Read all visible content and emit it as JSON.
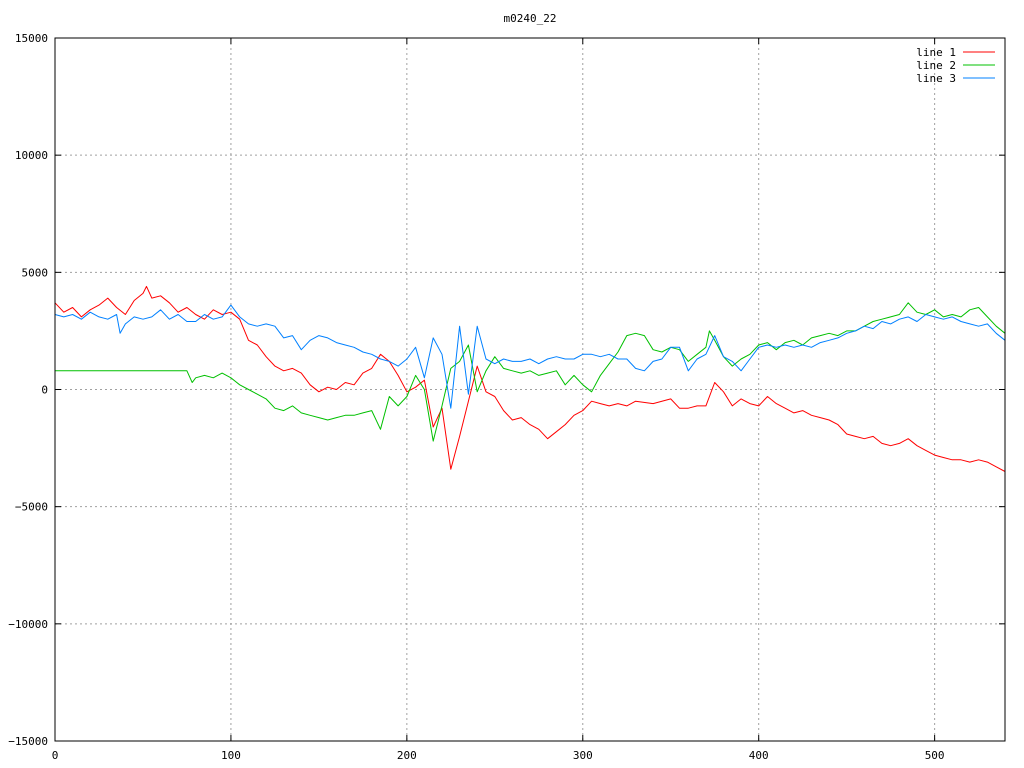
{
  "chart_data": {
    "type": "line",
    "title": "m0240_22",
    "xlabel": "",
    "ylabel": "",
    "xlim": [
      0,
      540
    ],
    "ylim": [
      -15000,
      15000
    ],
    "x_ticks": [
      0,
      100,
      200,
      300,
      400,
      500
    ],
    "y_ticks": [
      -15000,
      -10000,
      -5000,
      0,
      5000,
      10000,
      15000
    ],
    "grid": true,
    "legend_position": "top-right",
    "series": [
      {
        "name": "line 1",
        "color": "#ff0000",
        "points": [
          [
            0,
            3700
          ],
          [
            5,
            3300
          ],
          [
            10,
            3500
          ],
          [
            15,
            3100
          ],
          [
            20,
            3400
          ],
          [
            25,
            3600
          ],
          [
            30,
            3900
          ],
          [
            35,
            3500
          ],
          [
            40,
            3200
          ],
          [
            45,
            3800
          ],
          [
            50,
            4100
          ],
          [
            52,
            4400
          ],
          [
            55,
            3900
          ],
          [
            60,
            4000
          ],
          [
            65,
            3700
          ],
          [
            70,
            3300
          ],
          [
            75,
            3500
          ],
          [
            80,
            3200
          ],
          [
            85,
            3000
          ],
          [
            90,
            3400
          ],
          [
            95,
            3200
          ],
          [
            100,
            3300
          ],
          [
            105,
            3000
          ],
          [
            110,
            2100
          ],
          [
            115,
            1900
          ],
          [
            120,
            1400
          ],
          [
            125,
            1000
          ],
          [
            130,
            800
          ],
          [
            135,
            900
          ],
          [
            140,
            700
          ],
          [
            145,
            200
          ],
          [
            150,
            -100
          ],
          [
            155,
            100
          ],
          [
            160,
            0
          ],
          [
            165,
            300
          ],
          [
            170,
            200
          ],
          [
            175,
            700
          ],
          [
            180,
            900
          ],
          [
            185,
            1500
          ],
          [
            190,
            1200
          ],
          [
            195,
            600
          ],
          [
            200,
            -100
          ],
          [
            205,
            100
          ],
          [
            210,
            400
          ],
          [
            215,
            -1600
          ],
          [
            220,
            -800
          ],
          [
            225,
            -3400
          ],
          [
            230,
            -2000
          ],
          [
            235,
            -500
          ],
          [
            240,
            1000
          ],
          [
            245,
            -100
          ],
          [
            250,
            -300
          ],
          [
            255,
            -900
          ],
          [
            260,
            -1300
          ],
          [
            265,
            -1200
          ],
          [
            270,
            -1500
          ],
          [
            275,
            -1700
          ],
          [
            280,
            -2100
          ],
          [
            285,
            -1800
          ],
          [
            290,
            -1500
          ],
          [
            295,
            -1100
          ],
          [
            300,
            -900
          ],
          [
            305,
            -500
          ],
          [
            310,
            -600
          ],
          [
            315,
            -700
          ],
          [
            320,
            -600
          ],
          [
            325,
            -700
          ],
          [
            330,
            -500
          ],
          [
            340,
            -600
          ],
          [
            350,
            -400
          ],
          [
            355,
            -800
          ],
          [
            360,
            -800
          ],
          [
            365,
            -700
          ],
          [
            370,
            -700
          ],
          [
            375,
            300
          ],
          [
            380,
            -100
          ],
          [
            385,
            -700
          ],
          [
            390,
            -400
          ],
          [
            395,
            -600
          ],
          [
            400,
            -700
          ],
          [
            405,
            -300
          ],
          [
            410,
            -600
          ],
          [
            415,
            -800
          ],
          [
            420,
            -1000
          ],
          [
            425,
            -900
          ],
          [
            430,
            -1100
          ],
          [
            435,
            -1200
          ],
          [
            440,
            -1300
          ],
          [
            445,
            -1500
          ],
          [
            450,
            -1900
          ],
          [
            455,
            -2000
          ],
          [
            460,
            -2100
          ],
          [
            465,
            -2000
          ],
          [
            470,
            -2300
          ],
          [
            475,
            -2400
          ],
          [
            480,
            -2300
          ],
          [
            485,
            -2100
          ],
          [
            490,
            -2400
          ],
          [
            495,
            -2600
          ],
          [
            500,
            -2800
          ],
          [
            505,
            -2900
          ],
          [
            510,
            -3000
          ],
          [
            515,
            -3000
          ],
          [
            520,
            -3100
          ],
          [
            525,
            -3000
          ],
          [
            530,
            -3100
          ],
          [
            535,
            -3300
          ],
          [
            540,
            -3500
          ]
        ]
      },
      {
        "name": "line 2",
        "color": "#00c000",
        "points": [
          [
            0,
            800
          ],
          [
            10,
            800
          ],
          [
            20,
            800
          ],
          [
            30,
            800
          ],
          [
            40,
            800
          ],
          [
            50,
            800
          ],
          [
            60,
            800
          ],
          [
            70,
            800
          ],
          [
            75,
            800
          ],
          [
            78,
            300
          ],
          [
            80,
            500
          ],
          [
            85,
            600
          ],
          [
            90,
            500
          ],
          [
            95,
            700
          ],
          [
            100,
            500
          ],
          [
            105,
            200
          ],
          [
            110,
            0
          ],
          [
            115,
            -200
          ],
          [
            120,
            -400
          ],
          [
            125,
            -800
          ],
          [
            130,
            -900
          ],
          [
            135,
            -700
          ],
          [
            140,
            -1000
          ],
          [
            145,
            -1100
          ],
          [
            150,
            -1200
          ],
          [
            155,
            -1300
          ],
          [
            160,
            -1200
          ],
          [
            165,
            -1100
          ],
          [
            170,
            -1100
          ],
          [
            175,
            -1000
          ],
          [
            180,
            -900
          ],
          [
            185,
            -1700
          ],
          [
            190,
            -300
          ],
          [
            195,
            -700
          ],
          [
            200,
            -300
          ],
          [
            205,
            600
          ],
          [
            210,
            0
          ],
          [
            215,
            -2200
          ],
          [
            220,
            -700
          ],
          [
            225,
            900
          ],
          [
            230,
            1200
          ],
          [
            235,
            1900
          ],
          [
            240,
            -100
          ],
          [
            245,
            800
          ],
          [
            250,
            1400
          ],
          [
            255,
            900
          ],
          [
            260,
            800
          ],
          [
            265,
            700
          ],
          [
            270,
            800
          ],
          [
            275,
            600
          ],
          [
            280,
            700
          ],
          [
            285,
            800
          ],
          [
            290,
            200
          ],
          [
            295,
            600
          ],
          [
            300,
            200
          ],
          [
            305,
            -100
          ],
          [
            310,
            600
          ],
          [
            315,
            1100
          ],
          [
            320,
            1600
          ],
          [
            325,
            2300
          ],
          [
            330,
            2400
          ],
          [
            335,
            2300
          ],
          [
            340,
            1700
          ],
          [
            345,
            1600
          ],
          [
            350,
            1800
          ],
          [
            355,
            1700
          ],
          [
            360,
            1200
          ],
          [
            365,
            1500
          ],
          [
            370,
            1800
          ],
          [
            372,
            2500
          ],
          [
            375,
            2100
          ],
          [
            380,
            1400
          ],
          [
            385,
            1000
          ],
          [
            390,
            1300
          ],
          [
            395,
            1500
          ],
          [
            400,
            1900
          ],
          [
            405,
            2000
          ],
          [
            410,
            1700
          ],
          [
            415,
            2000
          ],
          [
            420,
            2100
          ],
          [
            425,
            1900
          ],
          [
            430,
            2200
          ],
          [
            435,
            2300
          ],
          [
            440,
            2400
          ],
          [
            445,
            2300
          ],
          [
            450,
            2500
          ],
          [
            455,
            2500
          ],
          [
            460,
            2700
          ],
          [
            465,
            2900
          ],
          [
            470,
            3000
          ],
          [
            475,
            3100
          ],
          [
            480,
            3200
          ],
          [
            485,
            3700
          ],
          [
            490,
            3300
          ],
          [
            495,
            3200
          ],
          [
            500,
            3400
          ],
          [
            505,
            3100
          ],
          [
            510,
            3200
          ],
          [
            515,
            3100
          ],
          [
            520,
            3400
          ],
          [
            525,
            3500
          ],
          [
            530,
            3100
          ],
          [
            535,
            2700
          ],
          [
            540,
            2400
          ]
        ]
      },
      {
        "name": "line 3",
        "color": "#0080ff",
        "points": [
          [
            0,
            3200
          ],
          [
            5,
            3100
          ],
          [
            10,
            3200
          ],
          [
            15,
            3000
          ],
          [
            20,
            3300
          ],
          [
            25,
            3100
          ],
          [
            30,
            3000
          ],
          [
            35,
            3200
          ],
          [
            37,
            2400
          ],
          [
            40,
            2800
          ],
          [
            45,
            3100
          ],
          [
            50,
            3000
          ],
          [
            55,
            3100
          ],
          [
            60,
            3400
          ],
          [
            65,
            3000
          ],
          [
            70,
            3200
          ],
          [
            75,
            2900
          ],
          [
            80,
            2900
          ],
          [
            85,
            3200
          ],
          [
            90,
            3000
          ],
          [
            95,
            3100
          ],
          [
            100,
            3600
          ],
          [
            105,
            3100
          ],
          [
            110,
            2800
          ],
          [
            115,
            2700
          ],
          [
            120,
            2800
          ],
          [
            125,
            2700
          ],
          [
            130,
            2200
          ],
          [
            135,
            2300
          ],
          [
            140,
            1700
          ],
          [
            145,
            2100
          ],
          [
            150,
            2300
          ],
          [
            155,
            2200
          ],
          [
            160,
            2000
          ],
          [
            165,
            1900
          ],
          [
            170,
            1800
          ],
          [
            175,
            1600
          ],
          [
            180,
            1500
          ],
          [
            185,
            1300
          ],
          [
            190,
            1200
          ],
          [
            195,
            1000
          ],
          [
            200,
            1300
          ],
          [
            205,
            1800
          ],
          [
            210,
            500
          ],
          [
            215,
            2200
          ],
          [
            220,
            1500
          ],
          [
            225,
            -800
          ],
          [
            230,
            2700
          ],
          [
            235,
            -200
          ],
          [
            240,
            2700
          ],
          [
            245,
            1300
          ],
          [
            250,
            1100
          ],
          [
            255,
            1300
          ],
          [
            260,
            1200
          ],
          [
            265,
            1200
          ],
          [
            270,
            1300
          ],
          [
            275,
            1100
          ],
          [
            280,
            1300
          ],
          [
            285,
            1400
          ],
          [
            290,
            1300
          ],
          [
            295,
            1300
          ],
          [
            300,
            1500
          ],
          [
            305,
            1500
          ],
          [
            310,
            1400
          ],
          [
            315,
            1500
          ],
          [
            320,
            1300
          ],
          [
            325,
            1300
          ],
          [
            330,
            900
          ],
          [
            335,
            800
          ],
          [
            340,
            1200
          ],
          [
            345,
            1300
          ],
          [
            350,
            1800
          ],
          [
            355,
            1800
          ],
          [
            360,
            800
          ],
          [
            365,
            1300
          ],
          [
            370,
            1500
          ],
          [
            375,
            2300
          ],
          [
            380,
            1400
          ],
          [
            385,
            1200
          ],
          [
            390,
            800
          ],
          [
            395,
            1300
          ],
          [
            400,
            1800
          ],
          [
            405,
            1900
          ],
          [
            410,
            1800
          ],
          [
            415,
            1900
          ],
          [
            420,
            1800
          ],
          [
            425,
            1900
          ],
          [
            430,
            1800
          ],
          [
            435,
            2000
          ],
          [
            440,
            2100
          ],
          [
            445,
            2200
          ],
          [
            450,
            2400
          ],
          [
            455,
            2500
          ],
          [
            460,
            2700
          ],
          [
            465,
            2600
          ],
          [
            470,
            2900
          ],
          [
            475,
            2800
          ],
          [
            480,
            3000
          ],
          [
            485,
            3100
          ],
          [
            490,
            2900
          ],
          [
            495,
            3200
          ],
          [
            500,
            3100
          ],
          [
            505,
            3000
          ],
          [
            510,
            3100
          ],
          [
            515,
            2900
          ],
          [
            520,
            2800
          ],
          [
            525,
            2700
          ],
          [
            530,
            2800
          ],
          [
            535,
            2400
          ],
          [
            540,
            2100
          ]
        ]
      }
    ]
  }
}
